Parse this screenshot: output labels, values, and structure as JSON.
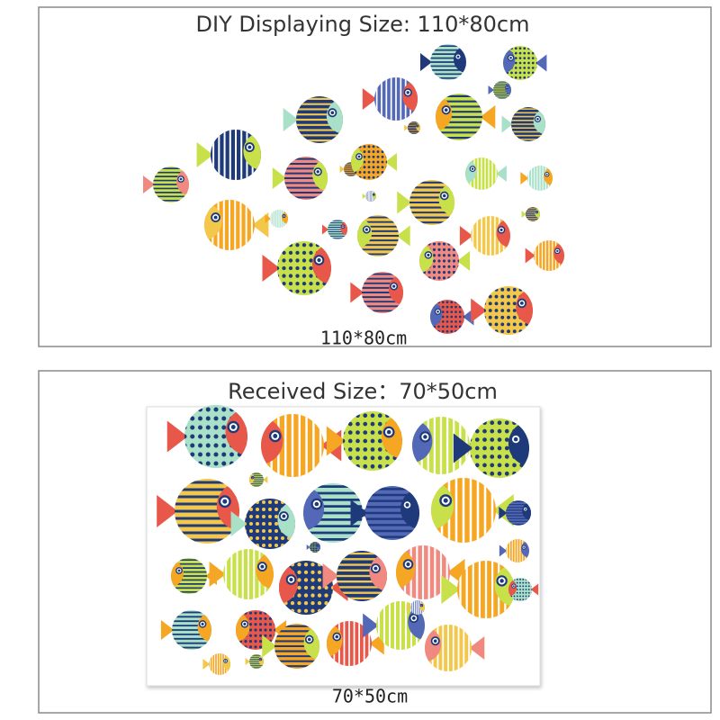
{
  "panels": [
    {
      "title": "DIY Displaying Size: 110*80cm",
      "caption": "110*80cm"
    },
    {
      "title": "Received Size：70*50cm",
      "caption": "70*50cm"
    }
  ]
}
